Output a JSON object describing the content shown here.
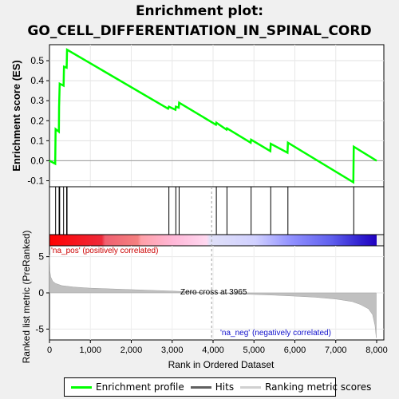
{
  "title_line1": "Enrichment plot:",
  "title_line2": "GO_CELL_DIFFERENTIATION_IN_SPINAL_CORD",
  "chart_data": {
    "type": "line",
    "x_max": 8000,
    "es_panel": {
      "ylabel": "Enrichment score (ES)",
      "ylim": [
        -0.13,
        0.58
      ],
      "yticks": [
        "-0.1",
        "0.0",
        "0.1",
        "0.2",
        "0.3",
        "0.4",
        "0.5"
      ],
      "ytick_values": [
        -0.1,
        0.0,
        0.1,
        0.2,
        0.3,
        0.4,
        0.5
      ],
      "line_color": "#00ff00",
      "profile": [
        [
          0,
          0.0
        ],
        [
          140,
          -0.015
        ],
        [
          150,
          0.158
        ],
        [
          230,
          0.145
        ],
        [
          235,
          0.27
        ],
        [
          250,
          0.385
        ],
        [
          345,
          0.375
        ],
        [
          355,
          0.47
        ],
        [
          420,
          0.465
        ],
        [
          430,
          0.555
        ],
        [
          2900,
          0.26
        ],
        [
          2920,
          0.27
        ],
        [
          3080,
          0.255
        ],
        [
          3090,
          0.27
        ],
        [
          3160,
          0.265
        ],
        [
          3170,
          0.29
        ],
        [
          4070,
          0.18
        ],
        [
          4080,
          0.19
        ],
        [
          4330,
          0.155
        ],
        [
          4340,
          0.162
        ],
        [
          4920,
          0.09
        ],
        [
          4930,
          0.105
        ],
        [
          5400,
          0.048
        ],
        [
          5410,
          0.085
        ],
        [
          5820,
          0.04
        ],
        [
          5830,
          0.09
        ],
        [
          7430,
          -0.108
        ],
        [
          7440,
          0.07
        ],
        [
          8000,
          0.0
        ]
      ]
    },
    "hits": [
      150,
      235,
      250,
      345,
      420,
      430,
      2920,
      3090,
      3170,
      4080,
      4340,
      4930,
      5410,
      5830,
      7440
    ],
    "heatmap": {
      "pos_label": "'na_pos' (positively correlated)",
      "neg_label": "'na_neg' (negatively correlated)"
    },
    "rank_panel": {
      "ylabel": "Ranked list metric (PreRanked)",
      "xlabel": "Rank in Ordered Dataset",
      "ylim": [
        -6.5,
        6.5
      ],
      "yticks": [
        "-5",
        "0",
        "5"
      ],
      "ytick_values": [
        -5,
        0,
        5
      ],
      "xticks": [
        "0",
        "1,000",
        "2,000",
        "3,000",
        "4,000",
        "5,000",
        "6,000",
        "7,000",
        "8,000"
      ],
      "xtick_values": [
        0,
        1000,
        2000,
        3000,
        4000,
        5000,
        6000,
        7000,
        8000
      ],
      "zero_cross_label": "Zero cross at 3965",
      "zero_cross": 3965,
      "metric_samples": [
        [
          0,
          5.2
        ],
        [
          10,
          3.0
        ],
        [
          30,
          2.2
        ],
        [
          80,
          1.6
        ],
        [
          150,
          1.3
        ],
        [
          300,
          1.0
        ],
        [
          600,
          0.8
        ],
        [
          1000,
          0.65
        ],
        [
          1500,
          0.55
        ],
        [
          2000,
          0.45
        ],
        [
          2500,
          0.35
        ],
        [
          3000,
          0.25
        ],
        [
          3500,
          0.12
        ],
        [
          3965,
          0.0
        ],
        [
          4500,
          -0.12
        ],
        [
          5000,
          -0.22
        ],
        [
          5500,
          -0.32
        ],
        [
          6000,
          -0.45
        ],
        [
          6500,
          -0.6
        ],
        [
          7000,
          -0.85
        ],
        [
          7400,
          -1.2
        ],
        [
          7600,
          -1.6
        ],
        [
          7800,
          -2.2
        ],
        [
          7900,
          -3.0
        ],
        [
          7960,
          -4.5
        ],
        [
          7990,
          -6.2
        ]
      ],
      "fill_color": "#c0c0c0"
    }
  },
  "legend": {
    "items": [
      {
        "label": "Enrichment profile",
        "color": "#00ff00"
      },
      {
        "label": "Hits",
        "color": "#606060"
      },
      {
        "label": "Ranking metric scores",
        "color": "#d0d0d0"
      }
    ]
  }
}
